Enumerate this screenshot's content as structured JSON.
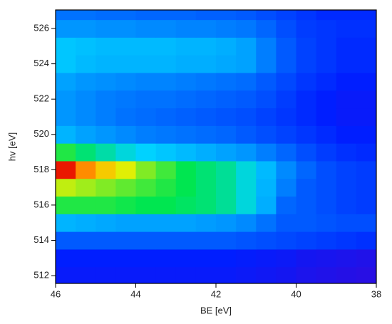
{
  "chart_data": {
    "type": "heatmap",
    "xlabel": "BE [eV]",
    "ylabel": "hv [eV]",
    "x_bins": [
      46,
      45.5,
      45,
      44.5,
      44,
      43.5,
      43,
      42.5,
      42,
      41.5,
      41,
      40.5,
      40,
      39.5,
      39,
      38.5,
      38
    ],
    "y_bins": [
      511.5,
      512.5,
      513.5,
      514.5,
      515.5,
      516.5,
      517.5,
      518.5,
      519.5,
      520.5,
      521.5,
      522.5,
      523.5,
      524.5,
      525.5,
      526.5,
      527.5
    ],
    "values": [
      [
        18,
        18,
        18,
        18,
        18,
        18,
        18,
        18,
        18,
        17,
        16,
        15,
        13,
        12,
        11,
        10
      ],
      [
        20,
        20,
        20,
        20,
        20,
        20,
        20,
        20,
        20,
        19,
        18,
        17,
        15,
        14,
        13,
        12
      ],
      [
        30,
        30,
        30,
        30,
        30,
        30,
        30,
        30,
        30,
        29,
        28,
        27,
        26,
        25,
        24,
        23
      ],
      [
        45,
        44,
        43,
        42,
        42,
        42,
        42,
        41,
        40,
        38,
        34,
        30,
        30,
        29,
        28,
        28
      ],
      [
        62,
        62,
        62,
        61,
        60,
        60,
        59,
        58,
        56,
        52,
        44,
        32,
        30,
        28,
        26,
        25
      ],
      [
        72,
        70,
        68,
        66,
        64,
        62,
        60,
        58,
        56,
        52,
        45,
        36,
        30,
        28,
        26,
        25
      ],
      [
        98,
        88,
        80,
        74,
        68,
        64,
        60,
        58,
        56,
        52,
        46,
        38,
        32,
        28,
        26,
        25
      ],
      [
        62,
        58,
        55,
        52,
        50,
        48,
        46,
        44,
        42,
        40,
        36,
        32,
        28,
        25,
        23,
        22
      ],
      [
        45,
        42,
        40,
        38,
        36,
        35,
        34,
        33,
        32,
        30,
        28,
        26,
        24,
        22,
        20,
        20
      ],
      [
        40,
        38,
        36,
        34,
        33,
        32,
        31,
        30,
        29,
        28,
        26,
        24,
        22,
        20,
        18,
        18
      ],
      [
        40,
        38,
        36,
        35,
        34,
        34,
        33,
        32,
        31,
        30,
        28,
        25,
        22,
        20,
        18,
        18
      ],
      [
        42,
        40,
        39,
        38,
        37,
        37,
        36,
        35,
        34,
        33,
        30,
        27,
        24,
        22,
        20,
        20
      ],
      [
        48,
        46,
        45,
        45,
        45,
        45,
        44,
        44,
        43,
        42,
        36,
        30,
        26,
        24,
        22,
        22
      ],
      [
        48,
        47,
        46,
        46,
        46,
        46,
        45,
        45,
        44,
        42,
        36,
        30,
        26,
        24,
        22,
        22
      ],
      [
        40,
        40,
        39,
        39,
        38,
        38,
        37,
        37,
        36,
        35,
        32,
        28,
        25,
        24,
        23,
        23
      ],
      [
        34,
        34,
        33,
        33,
        32,
        32,
        32,
        31,
        31,
        30,
        28,
        26,
        24,
        22,
        22,
        22
      ]
    ],
    "zlim": [
      0,
      100
    ],
    "colormap": "jet",
    "xlim": [
      46,
      38
    ],
    "xticks": [
      46,
      44,
      42,
      40,
      38
    ],
    "ylim": [
      511.56,
      527.05
    ],
    "yticks": [
      512,
      514,
      516,
      518,
      520,
      522,
      524,
      526
    ]
  }
}
